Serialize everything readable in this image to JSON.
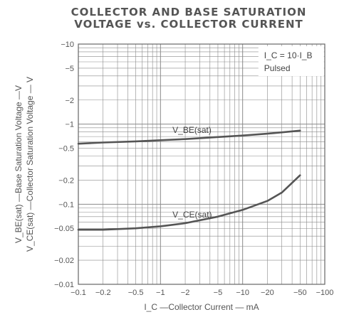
{
  "chart_data": {
    "type": "line",
    "title_line1": "COLLECTOR AND BASE SATURATION",
    "title_line2": "VOLTAGE vs. COLLECTOR CURRENT",
    "xlabel": "I_C —Collector Current — mA",
    "ylabel_line1": "V_BE(sat) —Base Saturation Voltage —V",
    "ylabel_line2": "V_CE(sat) —Collector Saturation Voltage — V",
    "x_scale": "log",
    "y_scale": "log",
    "xlim": [
      0.1,
      100
    ],
    "ylim": [
      0.01,
      10
    ],
    "grid": true,
    "x_ticks": [
      "−0.1",
      "−0.2",
      "−0.5",
      "−1",
      "−2",
      "−5",
      "−10",
      "−20",
      "−50",
      "−100"
    ],
    "y_ticks": [
      "−10",
      "−5",
      "−2",
      "−1",
      "−0.5",
      "−0.2",
      "−0.1",
      "−0.05",
      "−0.02",
      "−0.01"
    ],
    "conditions": [
      "I_C = 10·I_B",
      "Pulsed"
    ],
    "series": [
      {
        "name": "V_BE(sat)",
        "x": [
          0.1,
          0.2,
          0.5,
          1,
          2,
          5,
          10,
          20,
          50
        ],
        "y": [
          0.57,
          0.59,
          0.61,
          0.63,
          0.65,
          0.69,
          0.72,
          0.76,
          0.83
        ]
      },
      {
        "name": "V_CE(sat)",
        "x": [
          0.1,
          0.2,
          0.5,
          1,
          2,
          5,
          10,
          20,
          30,
          50
        ],
        "y": [
          0.048,
          0.048,
          0.05,
          0.053,
          0.058,
          0.07,
          0.085,
          0.11,
          0.14,
          0.23
        ]
      }
    ]
  },
  "colors": {
    "grid": "#8a8a8a",
    "curve": "#555555",
    "text": "#444444"
  }
}
